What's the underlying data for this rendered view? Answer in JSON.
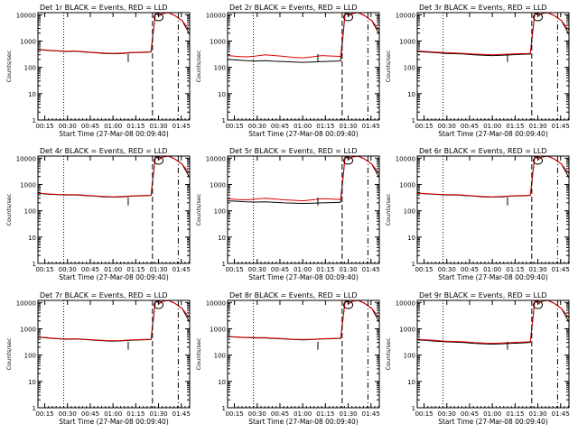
{
  "chart_data": [
    {
      "type": "line",
      "title": "Det 1r BLACK = Events, RED = LLD",
      "xlabel": "Start Time (27-Mar-08 00:09:40)",
      "ylabel": "Counts/sec",
      "x_ticks": [
        "00:15",
        "00:30",
        "00:45",
        "01:00",
        "01:15",
        "01:30",
        "01:45"
      ],
      "y_ticks": [
        "1",
        "10",
        "100",
        "1000",
        "10000"
      ],
      "ylim": [
        1,
        12000
      ],
      "yscale": "log",
      "series": [
        {
          "color": "#000000",
          "values": [
            470,
            440,
            420,
            400,
            410,
            380,
            360,
            340,
            330,
            340,
            360,
            370,
            380,
            14000
          ]
        },
        {
          "color": "#e00000",
          "values": [
            480,
            450,
            430,
            410,
            420,
            390,
            370,
            350,
            340,
            350,
            370,
            380,
            390,
            14000
          ]
        }
      ]
    },
    {
      "type": "line",
      "title": "Det 2r BLACK = Events, RED = LLD",
      "xlabel": "Start Time (27-Mar-08 00:09:40)",
      "ylabel": "Counts/sec",
      "x_ticks": [
        "00:15",
        "00:30",
        "00:45",
        "01:00",
        "01:15",
        "01:30",
        "01:45"
      ],
      "y_ticks": [
        "1",
        "10",
        "100",
        "1000",
        "10000"
      ],
      "ylim": [
        1,
        12000
      ],
      "yscale": "log",
      "series": [
        {
          "color": "#000000",
          "values": [
            200,
            190,
            180,
            175,
            180,
            170,
            165,
            160,
            155,
            160,
            165,
            170,
            175,
            14000
          ]
        },
        {
          "color": "#e00000",
          "values": [
            280,
            260,
            250,
            270,
            300,
            280,
            260,
            240,
            230,
            250,
            280,
            270,
            260,
            14000
          ]
        }
      ]
    },
    {
      "type": "line",
      "title": "Det 3r BLACK = Events, RED = LLD",
      "xlabel": "Start Time (27-Mar-08 00:09:40)",
      "ylabel": "Counts/sec",
      "x_ticks": [
        "00:15",
        "00:30",
        "00:45",
        "01:00",
        "01:15",
        "01:30",
        "01:45"
      ],
      "y_ticks": [
        "1",
        "10",
        "100",
        "1000",
        "10000"
      ],
      "ylim": [
        1,
        12000
      ],
      "yscale": "log",
      "series": [
        {
          "color": "#000000",
          "values": [
            400,
            380,
            360,
            340,
            330,
            320,
            300,
            290,
            280,
            290,
            300,
            310,
            320,
            14000
          ]
        },
        {
          "color": "#e00000",
          "values": [
            420,
            400,
            380,
            360,
            350,
            340,
            320,
            310,
            300,
            310,
            320,
            330,
            340,
            14000
          ]
        }
      ]
    },
    {
      "type": "line",
      "title": "Det 4r BLACK = Events, RED = LLD",
      "xlabel": "Start Time (27-Mar-08 00:09:40)",
      "ylabel": "Counts/sec",
      "x_ticks": [
        "00:15",
        "00:30",
        "00:45",
        "01:00",
        "01:15",
        "01:30",
        "01:45"
      ],
      "y_ticks": [
        "1",
        "10",
        "100",
        "1000",
        "10000"
      ],
      "ylim": [
        1,
        12000
      ],
      "yscale": "log",
      "series": [
        {
          "color": "#000000",
          "values": [
            460,
            430,
            410,
            400,
            400,
            380,
            360,
            340,
            330,
            340,
            360,
            370,
            380,
            14000
          ]
        },
        {
          "color": "#e00000",
          "values": [
            470,
            440,
            420,
            410,
            410,
            390,
            370,
            350,
            340,
            350,
            370,
            380,
            390,
            14000
          ]
        }
      ]
    },
    {
      "type": "line",
      "title": "Det 5r BLACK = Events, RED = LLD",
      "xlabel": "Start Time (27-Mar-08 00:09:40)",
      "ylabel": "Counts/sec",
      "x_ticks": [
        "00:15",
        "00:30",
        "00:45",
        "01:00",
        "01:15",
        "01:30",
        "01:45"
      ],
      "y_ticks": [
        "1",
        "10",
        "100",
        "1000",
        "10000"
      ],
      "ylim": [
        1,
        12000
      ],
      "yscale": "log",
      "series": [
        {
          "color": "#000000",
          "values": [
            240,
            230,
            220,
            215,
            220,
            210,
            200,
            195,
            190,
            195,
            200,
            205,
            210,
            14000
          ]
        },
        {
          "color": "#e00000",
          "values": [
            290,
            270,
            260,
            280,
            300,
            280,
            260,
            250,
            240,
            260,
            290,
            280,
            270,
            14000
          ]
        }
      ]
    },
    {
      "type": "line",
      "title": "Det 6r BLACK = Events, RED = LLD",
      "xlabel": "Start Time (27-Mar-08 00:09:40)",
      "ylabel": "Counts/sec",
      "x_ticks": [
        "00:15",
        "00:30",
        "00:45",
        "01:00",
        "01:15",
        "01:30",
        "01:45"
      ],
      "y_ticks": [
        "1",
        "10",
        "100",
        "1000",
        "10000"
      ],
      "ylim": [
        1,
        12000
      ],
      "yscale": "log",
      "series": [
        {
          "color": "#000000",
          "values": [
            460,
            440,
            420,
            400,
            400,
            380,
            360,
            340,
            330,
            340,
            360,
            370,
            380,
            14000
          ]
        },
        {
          "color": "#e00000",
          "values": [
            470,
            450,
            430,
            410,
            410,
            390,
            370,
            350,
            340,
            350,
            370,
            380,
            390,
            14000
          ]
        }
      ]
    },
    {
      "type": "line",
      "title": "Det 7r BLACK = Events, RED = LLD",
      "xlabel": "Start Time (27-Mar-08 00:09:40)",
      "ylabel": "Counts/sec",
      "x_ticks": [
        "00:15",
        "00:30",
        "00:45",
        "01:00",
        "01:15",
        "01:30",
        "01:45"
      ],
      "y_ticks": [
        "1",
        "10",
        "100",
        "1000",
        "10000"
      ],
      "ylim": [
        1,
        12000
      ],
      "yscale": "log",
      "series": [
        {
          "color": "#000000",
          "values": [
            480,
            450,
            420,
            400,
            410,
            390,
            370,
            350,
            340,
            350,
            370,
            380,
            390,
            14000
          ]
        },
        {
          "color": "#e00000",
          "values": [
            490,
            460,
            430,
            410,
            420,
            400,
            380,
            360,
            350,
            360,
            380,
            390,
            400,
            14000
          ]
        }
      ]
    },
    {
      "type": "line",
      "title": "Det 8r BLACK = Events, RED = LLD",
      "xlabel": "Start Time (27-Mar-08 00:09:40)",
      "ylabel": "Counts/sec",
      "x_ticks": [
        "00:15",
        "00:30",
        "00:45",
        "01:00",
        "01:15",
        "01:30",
        "01:45"
      ],
      "y_ticks": [
        "1",
        "10",
        "100",
        "1000",
        "10000"
      ],
      "ylim": [
        1,
        12000
      ],
      "yscale": "log",
      "series": [
        {
          "color": "#000000",
          "values": [
            500,
            480,
            460,
            450,
            450,
            430,
            410,
            390,
            380,
            390,
            410,
            420,
            430,
            14000
          ]
        },
        {
          "color": "#e00000",
          "values": [
            510,
            490,
            470,
            460,
            460,
            440,
            420,
            400,
            390,
            400,
            420,
            430,
            440,
            14000
          ]
        }
      ]
    },
    {
      "type": "line",
      "title": "Det 9r BLACK = Events, RED = LLD",
      "xlabel": "Start Time (27-Mar-08 00:09:40)",
      "ylabel": "Counts/sec",
      "x_ticks": [
        "00:15",
        "00:30",
        "00:45",
        "01:00",
        "01:15",
        "01:30",
        "01:45"
      ],
      "y_ticks": [
        "1",
        "10",
        "100",
        "1000",
        "10000"
      ],
      "ylim": [
        1,
        12000
      ],
      "yscale": "log",
      "series": [
        {
          "color": "#000000",
          "values": [
            380,
            360,
            340,
            320,
            310,
            300,
            280,
            270,
            260,
            270,
            280,
            290,
            300,
            14000
          ]
        },
        {
          "color": "#e00000",
          "values": [
            400,
            380,
            360,
            340,
            330,
            320,
            300,
            290,
            280,
            290,
            300,
            310,
            320,
            14000
          ]
        }
      ]
    }
  ]
}
